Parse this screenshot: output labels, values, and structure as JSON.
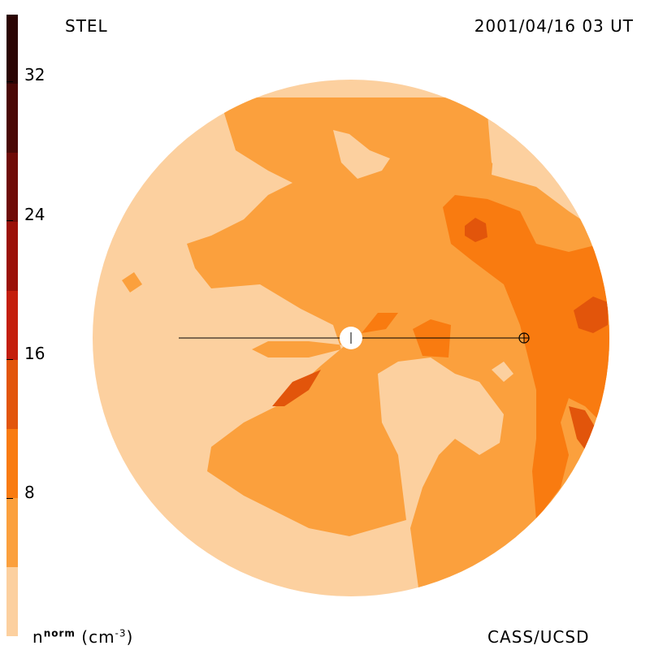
{
  "header": {
    "left_label": "STEL",
    "right_label": "2001/04/16 03 UT"
  },
  "footer": {
    "unit_base": "n",
    "unit_sup": "norm",
    "unit_paren": "(cm",
    "unit_exp": "-3",
    "unit_close": ")",
    "credit": "CASS/UCSD"
  },
  "colorbar": {
    "ticks": [
      "32",
      "24",
      "16",
      "8"
    ],
    "colors": [
      "#2b0504",
      "#4a0806",
      "#6f0b07",
      "#9b1008",
      "#c41e0c",
      "#e2550b",
      "#f97b10",
      "#fba03d",
      "#fcd09f"
    ]
  },
  "map_colors": {
    "lightest": "#fcd09f",
    "light": "#fba03d",
    "mid": "#f97b10",
    "dark": "#e2550b",
    "darker": "#c41e0c"
  }
}
